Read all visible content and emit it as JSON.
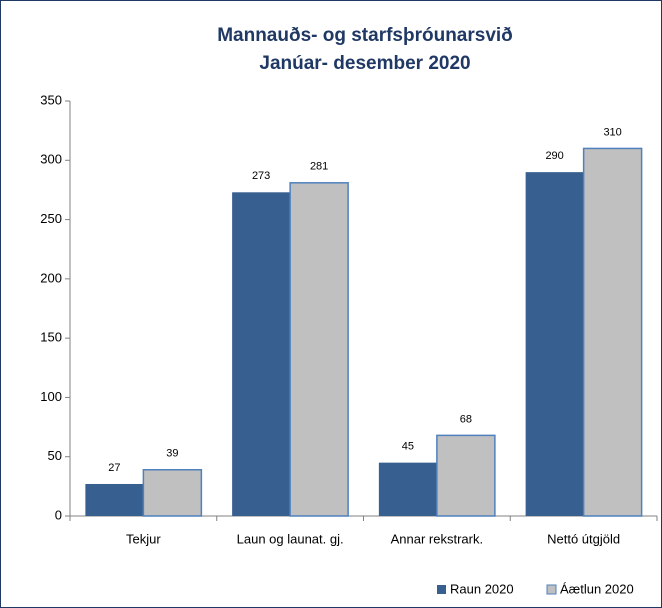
{
  "chart_data": {
    "type": "bar",
    "title": "Mannauðs- og starfsþróunarsvið",
    "subtitle": "Janúar- desember 2020",
    "categories": [
      "Tekjur",
      "Laun og launat. gj.",
      "Annar rekstrark.",
      "Nettó útgjöld"
    ],
    "series": [
      {
        "name": "Raun 2020",
        "color": "#375f8f",
        "values": [
          27,
          273,
          45,
          290
        ]
      },
      {
        "name": "Áætlun 2020",
        "color": "#c0c0c0",
        "values": [
          39,
          281,
          68,
          310
        ]
      }
    ],
    "ylim": [
      0,
      350
    ],
    "yticks": [
      0,
      50,
      100,
      150,
      200,
      250,
      300,
      350
    ],
    "grid": false,
    "legend": "bottom-right"
  }
}
